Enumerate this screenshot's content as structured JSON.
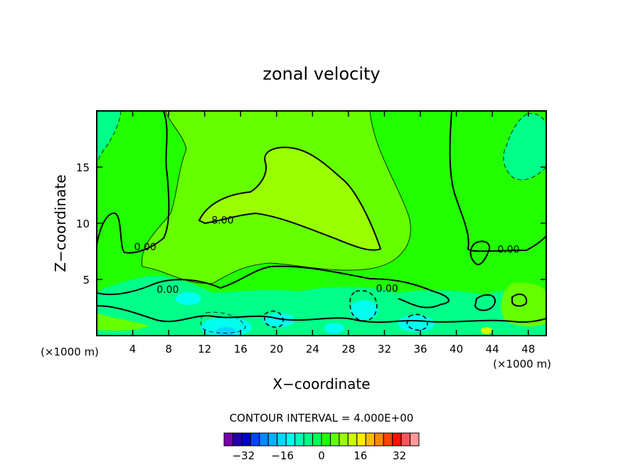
{
  "chart_data": {
    "type": "contour",
    "title": "zonal velocity",
    "xlabel": "X−coordinate",
    "ylabel": "Z−coordinate",
    "x_unit_left": "(×1000 m)",
    "x_unit_right": "(×1000 m)",
    "xlim": [
      0,
      50
    ],
    "ylim": [
      0,
      20
    ],
    "x_ticks": [
      4,
      8,
      12,
      16,
      20,
      24,
      28,
      32,
      36,
      40,
      44,
      48
    ],
    "y_ticks": [
      5,
      10,
      15
    ],
    "contour_interval_label": "CONTOUR INTERVAL = 4.000E+00",
    "contour_labels": [
      {
        "text": "8.00",
        "x": 14,
        "y": 10.3
      },
      {
        "text": "0.00",
        "x": 5.4,
        "y": 7.9
      },
      {
        "text": "0.00",
        "x": 32.3,
        "y": 4.2
      },
      {
        "text": "0.00",
        "x": 45.8,
        "y": 7.7
      },
      {
        "text": "0.00",
        "x": 7.9,
        "y": 4.1
      }
    ],
    "colorbar": {
      "min": -40,
      "max": 40,
      "step": 4,
      "colors": [
        "#7700b0",
        "#2200aa",
        "#0000c8",
        "#0044ff",
        "#0088ff",
        "#00b0ff",
        "#00d8ff",
        "#00ffee",
        "#00ffbb",
        "#00ff88",
        "#00ff55",
        "#22ff00",
        "#66ff00",
        "#99ff00",
        "#ccff00",
        "#ffee00",
        "#ffbb00",
        "#ff8800",
        "#ff4400",
        "#ff1100",
        "#ff5555",
        "#ff9999"
      ],
      "tick_values": [
        -32,
        -16,
        0,
        16,
        32
      ],
      "tick_labels": [
        "−32",
        "−16",
        "0",
        "16",
        "32"
      ]
    }
  }
}
